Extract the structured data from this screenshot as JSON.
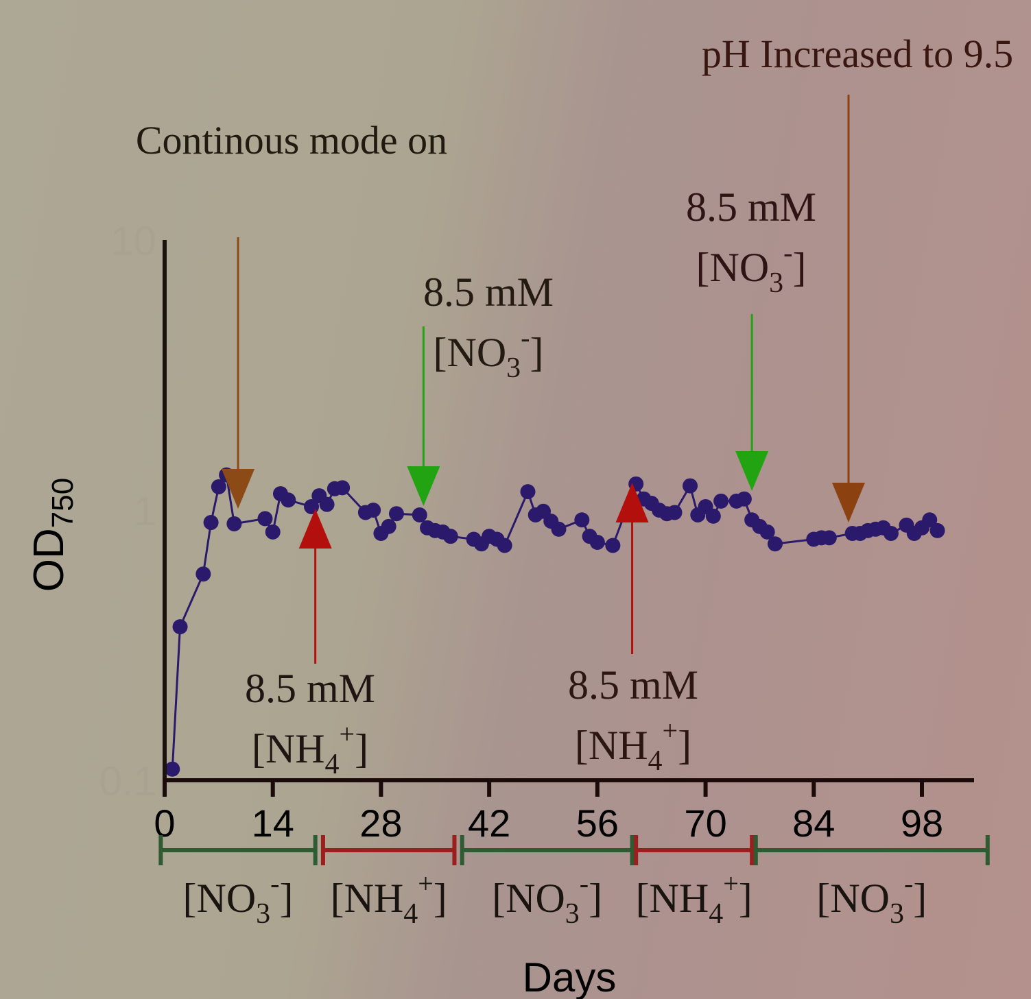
{
  "chart_data": {
    "type": "line",
    "xlabel": "Days",
    "ylabel_main": "OD",
    "ylabel_sub": "750",
    "y_scale": "log",
    "ylim": [
      0.1,
      10
    ],
    "xlim": [
      0,
      106
    ],
    "x_ticks": [
      0,
      14,
      28,
      42,
      56,
      70,
      84,
      98
    ],
    "y_ticks": [
      {
        "value": 10,
        "label": "10"
      },
      {
        "value": 1,
        "label": "1"
      },
      {
        "value": 0.1,
        "label": "0.1"
      }
    ],
    "series": [
      {
        "color": "#2b1a6b",
        "x": [
          1,
          2,
          5,
          6,
          7,
          8,
          9,
          13,
          14,
          15,
          16,
          19,
          20,
          21,
          22,
          23,
          26,
          27,
          28,
          29,
          30,
          33,
          34,
          35,
          36,
          37,
          40,
          41,
          42,
          43,
          44,
          47,
          48,
          49,
          50,
          51,
          54,
          55,
          56,
          58,
          61,
          62,
          63,
          64,
          65,
          66,
          68,
          69,
          70,
          71,
          72,
          74,
          75,
          76,
          77,
          78,
          79,
          84,
          85,
          86,
          89,
          90,
          91,
          92,
          93,
          94,
          96,
          97,
          98,
          99,
          100
        ],
        "y": [
          0.11,
          0.37,
          0.58,
          0.9,
          1.22,
          1.35,
          0.89,
          0.93,
          0.83,
          1.15,
          1.09,
          1.03,
          1.13,
          1.05,
          1.2,
          1.21,
          0.98,
          1.0,
          0.82,
          0.87,
          0.97,
          0.96,
          0.86,
          0.84,
          0.83,
          0.8,
          0.78,
          0.75,
          0.8,
          0.78,
          0.74,
          1.17,
          0.96,
          0.99,
          0.91,
          0.85,
          0.92,
          0.8,
          0.76,
          0.74,
          1.25,
          1.1,
          1.06,
          1.0,
          0.97,
          0.98,
          1.23,
          0.96,
          1.03,
          0.95,
          1.08,
          1.08,
          1.1,
          0.92,
          0.87,
          0.83,
          0.75,
          0.78,
          0.79,
          0.79,
          0.82,
          0.82,
          0.84,
          0.85,
          0.86,
          0.82,
          0.88,
          0.82,
          0.86,
          0.92,
          0.84
        ]
      }
    ],
    "arrows": [
      {
        "x": 9.5,
        "direction": "down",
        "color": "#8b4a16",
        "label_lines": [
          "Continous mode on"
        ]
      },
      {
        "x": 33.5,
        "direction": "down",
        "color": "#22a412",
        "label_lines": [
          "8.5 mM",
          "[NO",
          "3",
          "-",
          "]"
        ]
      },
      {
        "x": 19.5,
        "direction": "up",
        "color": "#b30f0c",
        "label_lines": [
          "8.5 mM",
          "[NH",
          "4",
          "+",
          "]"
        ]
      },
      {
        "x": 60.5,
        "direction": "up",
        "color": "#b30f0c",
        "label_lines": [
          "8.5 mM",
          "[NH",
          "4",
          "+",
          "]"
        ]
      },
      {
        "x": 76.0,
        "direction": "down",
        "color": "#22a412",
        "label_lines": [
          "8.5 mM",
          "[NO",
          "3",
          "-",
          "]"
        ]
      },
      {
        "x": 88.5,
        "direction": "down",
        "color": "#8b4210",
        "label_lines": [
          "pH Increased to 9.5"
        ]
      }
    ],
    "periods": [
      {
        "start": -0.5,
        "end": 19.5,
        "color": "#2f5b32",
        "label": "[NO",
        "sub": "3",
        "sup": "-",
        "close": "]"
      },
      {
        "start": 20.5,
        "end": 37.5,
        "color": "#9a1f1f",
        "label": "[NH",
        "sub": "4",
        "sup": "+",
        "close": "]"
      },
      {
        "start": 38.5,
        "end": 60.5,
        "color": "#2f5b32",
        "label": "[NO",
        "sub": "3",
        "sup": "-",
        "close": "]"
      },
      {
        "start": 61.0,
        "end": 76.0,
        "color": "#9a1f1f",
        "label": "[NH",
        "sub": "4",
        "sup": "+",
        "close": "]"
      },
      {
        "start": 76.5,
        "end": 106.5,
        "color": "#2f5b32",
        "label": "[NO",
        "sub": "3",
        "sup": "-",
        "close": "]"
      }
    ]
  }
}
